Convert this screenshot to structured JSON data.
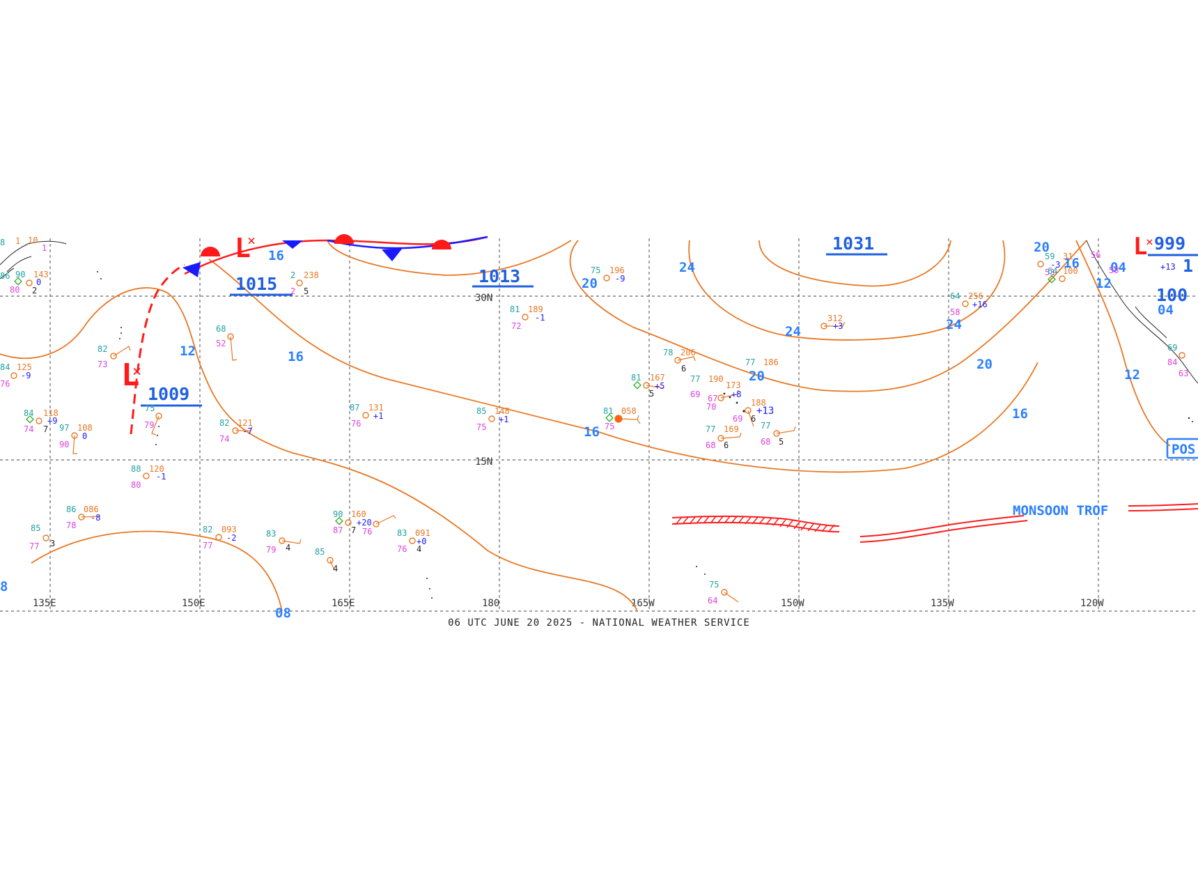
{
  "map": {
    "caption": "06 UTC JUNE 20 2025 - NATIONAL WEATHER SERVICE",
    "colors": {
      "isobar": "#e87722",
      "label_blue": "#2a7fff",
      "pressure_center": "#1f5fe0",
      "front_red": "#ff1a1a",
      "front_blue": "#1a1aff",
      "temp": "#22a0a0",
      "dewpoint": "#e040e0",
      "grid": "#666666"
    },
    "longitude_labels": [
      "135E",
      "150E",
      "165E",
      "180",
      "165W",
      "150W",
      "135W",
      "120W"
    ],
    "latitude_labels": [
      "30N",
      "15N"
    ],
    "isobar_labels": [
      "16",
      "12",
      "16",
      "20",
      "24",
      "24",
      "20",
      "24",
      "20",
      "16",
      "16",
      "12",
      "12",
      "16",
      "20",
      "08",
      "8",
      "04",
      "04"
    ],
    "pressure_centers": [
      "1015",
      "1013",
      "1031",
      "1009",
      "999",
      "1",
      "100",
      "04",
      "08"
    ],
    "low_symbols": [
      "L",
      "L",
      "L"
    ],
    "features": {
      "monsoon_trough_label": "MONSOON TROF",
      "partial_box_label": "POS"
    },
    "station_numbers": [
      "8",
      "1",
      "10",
      "1",
      "86",
      "0",
      "80",
      "2",
      "90",
      "143",
      "84",
      "125",
      "-9",
      "76",
      "2",
      "238",
      "2",
      "5",
      "68",
      "52",
      "82",
      "73",
      "84",
      "118",
      "+9",
      "74",
      "7",
      "97",
      "108",
      "90",
      "0",
      "75",
      "79",
      "82",
      "121",
      "-7",
      "74",
      "88",
      "120",
      "-1",
      "80",
      "86",
      "086",
      "-8",
      "78",
      "85",
      "77",
      "3",
      "82",
      "093",
      "-2",
      "77",
      "83",
      "79",
      "4",
      "85",
      "4",
      "87",
      "131",
      "+1",
      "76",
      "90",
      "160",
      "+20",
      "87",
      "7",
      "76",
      "83",
      "091",
      "+0",
      "76",
      "4",
      "85",
      "148",
      "+1",
      "75",
      "81",
      "189",
      "-1",
      "72",
      "75",
      "196",
      "-9",
      "81",
      "058",
      "75",
      "78",
      "206",
      "6",
      "81",
      "167",
      "+5",
      "5",
      "77",
      "190",
      "69",
      "173",
      "+8",
      "70",
      "67",
      "188",
      "+13",
      "69",
      "6",
      "77",
      "186",
      "77",
      "169",
      "68",
      "6",
      "77",
      "68",
      "5",
      "75",
      "64",
      "312",
      "+3",
      "64",
      "256",
      "+16",
      "58",
      "59",
      "31",
      "-3",
      "53",
      "64",
      "100",
      "69",
      "84",
      "63",
      "58",
      "56",
      "+13"
    ]
  }
}
